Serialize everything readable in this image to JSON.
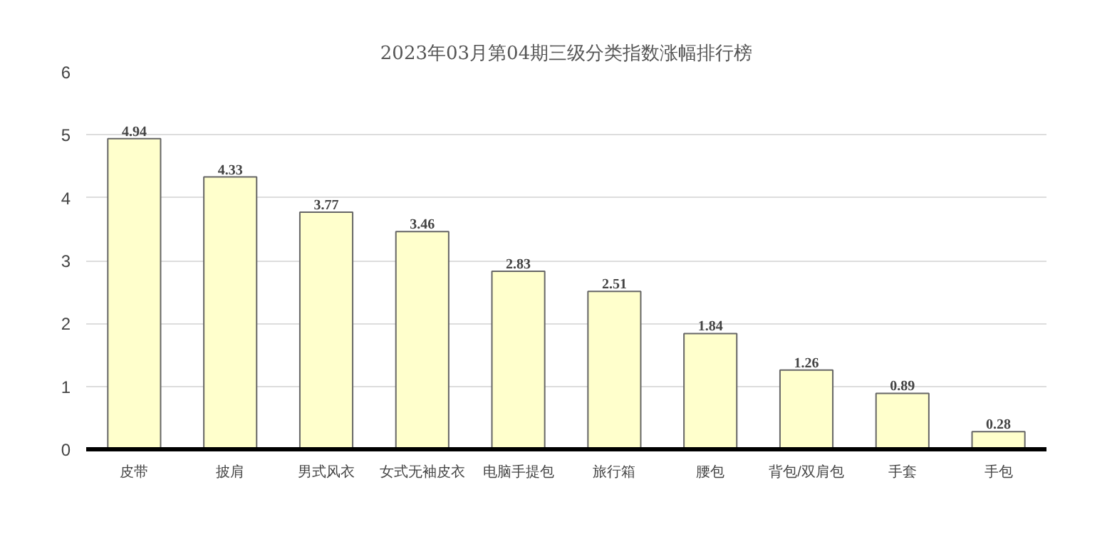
{
  "chart_data": {
    "type": "bar",
    "title": "2023年03月第04期三级分类指数涨幅排行榜",
    "categories": [
      "皮带",
      "披肩",
      "男式风衣",
      "女式无袖皮衣",
      "电脑手提包",
      "旅行箱",
      "腰包",
      "背包/双肩包",
      "手套",
      "手包"
    ],
    "values": [
      4.94,
      4.33,
      3.77,
      3.46,
      2.83,
      2.51,
      1.84,
      1.26,
      0.89,
      0.28
    ],
    "color": "#ffffcc",
    "ylim": [
      0,
      6
    ],
    "yticks": [
      0,
      1,
      2,
      3,
      4,
      5,
      6
    ],
    "grid": "y",
    "data_labels": true
  }
}
